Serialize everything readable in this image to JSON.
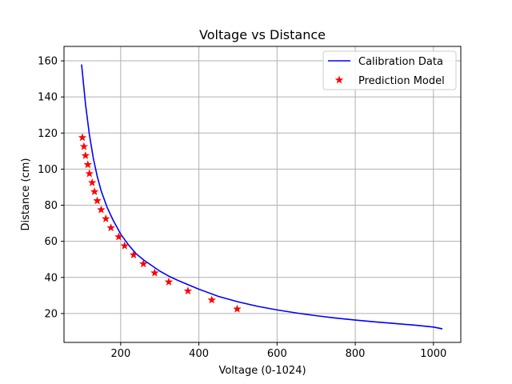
{
  "chart_data": {
    "type": "line",
    "title": "Voltage vs Distance",
    "xlabel": "Voltage (0-1024)",
    "ylabel": "Distance (cm)",
    "xlim": [
      55,
      1070
    ],
    "ylim": [
      4,
      168
    ],
    "xticks": [
      200,
      400,
      600,
      800,
      1000
    ],
    "yticks": [
      20,
      40,
      60,
      80,
      100,
      120,
      140,
      160
    ],
    "grid": true,
    "legend_position": "top-right",
    "series": [
      {
        "name": "Calibration Data",
        "kind": "line",
        "color": "#0000ff",
        "x": [
          100,
          110,
          120,
          130,
          140,
          150,
          165,
          180,
          200,
          220,
          240,
          260,
          280,
          300,
          325,
          350,
          400,
          450,
          500,
          550,
          600,
          650,
          700,
          750,
          800,
          850,
          900,
          950,
          1000,
          1023
        ],
        "y": [
          158,
          136,
          119,
          106,
          96,
          88,
          79,
          72,
          64,
          58,
          53,
          49.5,
          46.5,
          43.5,
          40.5,
          38,
          33.5,
          29.5,
          26.5,
          24,
          22,
          20.3,
          18.8,
          17.5,
          16.4,
          15.4,
          14.5,
          13.6,
          12.5,
          11.5
        ]
      },
      {
        "name": "Prediction Model",
        "kind": "scatter",
        "marker": "star",
        "color": "#ff0000",
        "x": [
          102,
          106,
          110,
          116,
          120,
          127,
          133,
          140,
          150,
          162,
          175,
          195,
          210,
          233,
          258,
          287,
          323,
          372,
          433,
          498
        ],
        "y": [
          117.5,
          112.5,
          107.5,
          102.5,
          97.5,
          92.5,
          87.5,
          82.5,
          77.5,
          72.5,
          67.5,
          62.5,
          57.5,
          52.5,
          47.5,
          42.5,
          37.5,
          32.5,
          27.5,
          22.5
        ]
      }
    ]
  }
}
